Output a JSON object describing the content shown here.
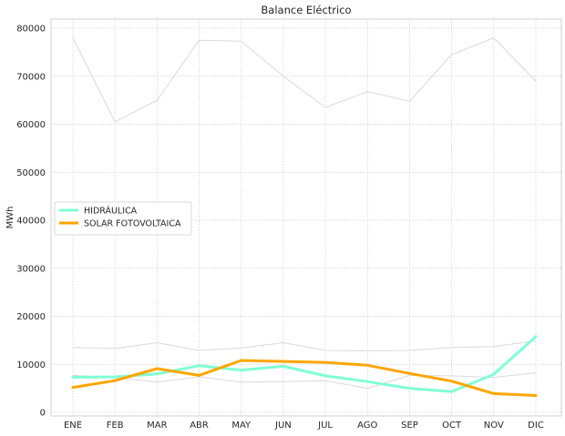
{
  "chart_data": {
    "type": "line",
    "title": "Balance Eléctrico",
    "xlabel": "",
    "ylabel": "MWh",
    "categories": [
      "ENE",
      "FEB",
      "MAR",
      "ABR",
      "MAY",
      "JUN",
      "JUL",
      "AGO",
      "SEP",
      "OCT",
      "NOV",
      "DIC"
    ],
    "ylim": [
      0,
      82000
    ],
    "yticks": [
      0,
      10000,
      20000,
      30000,
      40000,
      50000,
      60000,
      70000,
      80000
    ],
    "grid": true,
    "legend_position": "center-left",
    "series": [
      {
        "name": "HIDRÁULICA",
        "color": "#7fffd4",
        "highlight": true,
        "values": [
          7300,
          7400,
          8000,
          9700,
          8800,
          9600,
          7600,
          6400,
          5000,
          4300,
          7900,
          15800
        ]
      },
      {
        "name": "SOLAR FOTOVOLTAICA",
        "color": "#ffa500",
        "highlight": true,
        "values": [
          5200,
          6600,
          9100,
          7700,
          10800,
          10600,
          10400,
          9800,
          8100,
          6500,
          3900,
          3500
        ]
      },
      {
        "name": "",
        "color": "#d9d9d9",
        "highlight": false,
        "values": [
          78000,
          60500,
          65000,
          77500,
          77300,
          70000,
          63500,
          66800,
          64800,
          74500,
          78000,
          69000
        ]
      },
      {
        "name": "",
        "color": "#d9d9d9",
        "highlight": false,
        "values": [
          13500,
          13300,
          14500,
          12900,
          13400,
          14500,
          12900,
          12800,
          12900,
          13500,
          13700,
          14900
        ]
      },
      {
        "name": "",
        "color": "#d9d9d9",
        "highlight": false,
        "values": [
          7700,
          7300,
          6300,
          7400,
          6300,
          6400,
          6600,
          5000,
          7700,
          7600,
          7300,
          8200
        ]
      }
    ]
  }
}
